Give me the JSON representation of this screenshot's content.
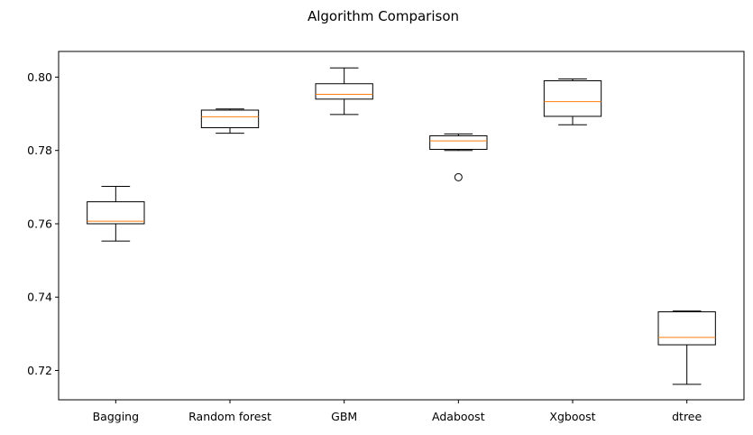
{
  "chart_data": {
    "type": "box",
    "title": "Algorithm Comparison",
    "xlabel": "",
    "ylabel": "",
    "ylim": [
      0.712,
      0.807
    ],
    "yticks": [
      0.72,
      0.74,
      0.76,
      0.78,
      0.8
    ],
    "ytick_labels": [
      "0.72",
      "0.74",
      "0.76",
      "0.78",
      "0.80"
    ],
    "categories": [
      "Bagging",
      "Random forest",
      "GBM",
      "Adaboost",
      "Xgboost",
      "dtree"
    ],
    "series": [
      {
        "whisker_low": 0.7553,
        "q1": 0.76,
        "median": 0.7607,
        "q3": 0.766,
        "whisker_high": 0.7702,
        "outliers": []
      },
      {
        "whisker_low": 0.7847,
        "q1": 0.7862,
        "median": 0.7892,
        "q3": 0.791,
        "whisker_high": 0.7913,
        "outliers": []
      },
      {
        "whisker_low": 0.7898,
        "q1": 0.794,
        "median": 0.7953,
        "q3": 0.7982,
        "whisker_high": 0.8025,
        "outliers": []
      },
      {
        "whisker_low": 0.78,
        "q1": 0.7803,
        "median": 0.7826,
        "q3": 0.784,
        "whisker_high": 0.7845,
        "outliers": [
          0.7727
        ]
      },
      {
        "whisker_low": 0.787,
        "q1": 0.7893,
        "median": 0.7933,
        "q3": 0.799,
        "whisker_high": 0.7995,
        "outliers": []
      },
      {
        "whisker_low": 0.7162,
        "q1": 0.727,
        "median": 0.729,
        "q3": 0.736,
        "whisker_high": 0.7362,
        "outliers": []
      }
    ],
    "colors": {
      "box": "#000000",
      "median": "#ff7f0e",
      "axes": "#000000",
      "background": "#ffffff"
    },
    "grid": false,
    "legend": "none"
  }
}
